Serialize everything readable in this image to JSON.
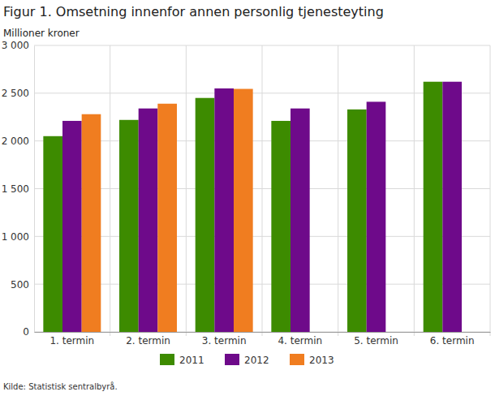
{
  "chart_data": {
    "type": "bar",
    "title": "Figur 1. Omsetning innenfor annen personlig tjenesteyting",
    "y_label": "Millioner kroner",
    "source": "Kilde: Statistisk sentralbyrå.",
    "categories": [
      "1. termin",
      "2. termin",
      "3. termin",
      "4. termin",
      "5. termin",
      "6. termin"
    ],
    "series": [
      {
        "name": "2011",
        "color": "#3d8b00",
        "values": [
          2050,
          2220,
          2450,
          2210,
          2330,
          2620
        ]
      },
      {
        "name": "2012",
        "color": "#6e0a8a",
        "values": [
          2210,
          2340,
          2550,
          2340,
          2410,
          2620
        ]
      },
      {
        "name": "2013",
        "color": "#f07d20",
        "values": [
          2280,
          2390,
          2545,
          null,
          null,
          null
        ]
      }
    ],
    "ylim": [
      0,
      3000
    ],
    "yticks": [
      0,
      500,
      {
        "value": 1000,
        "label": "1 000"
      },
      {
        "value": 1500,
        "label": "1 500"
      },
      {
        "value": 2000,
        "label": "2 000"
      },
      {
        "value": 2500,
        "label": "2 500"
      },
      {
        "value": 3000,
        "label": "3 000"
      }
    ],
    "grid": true,
    "legend": "bottom"
  }
}
